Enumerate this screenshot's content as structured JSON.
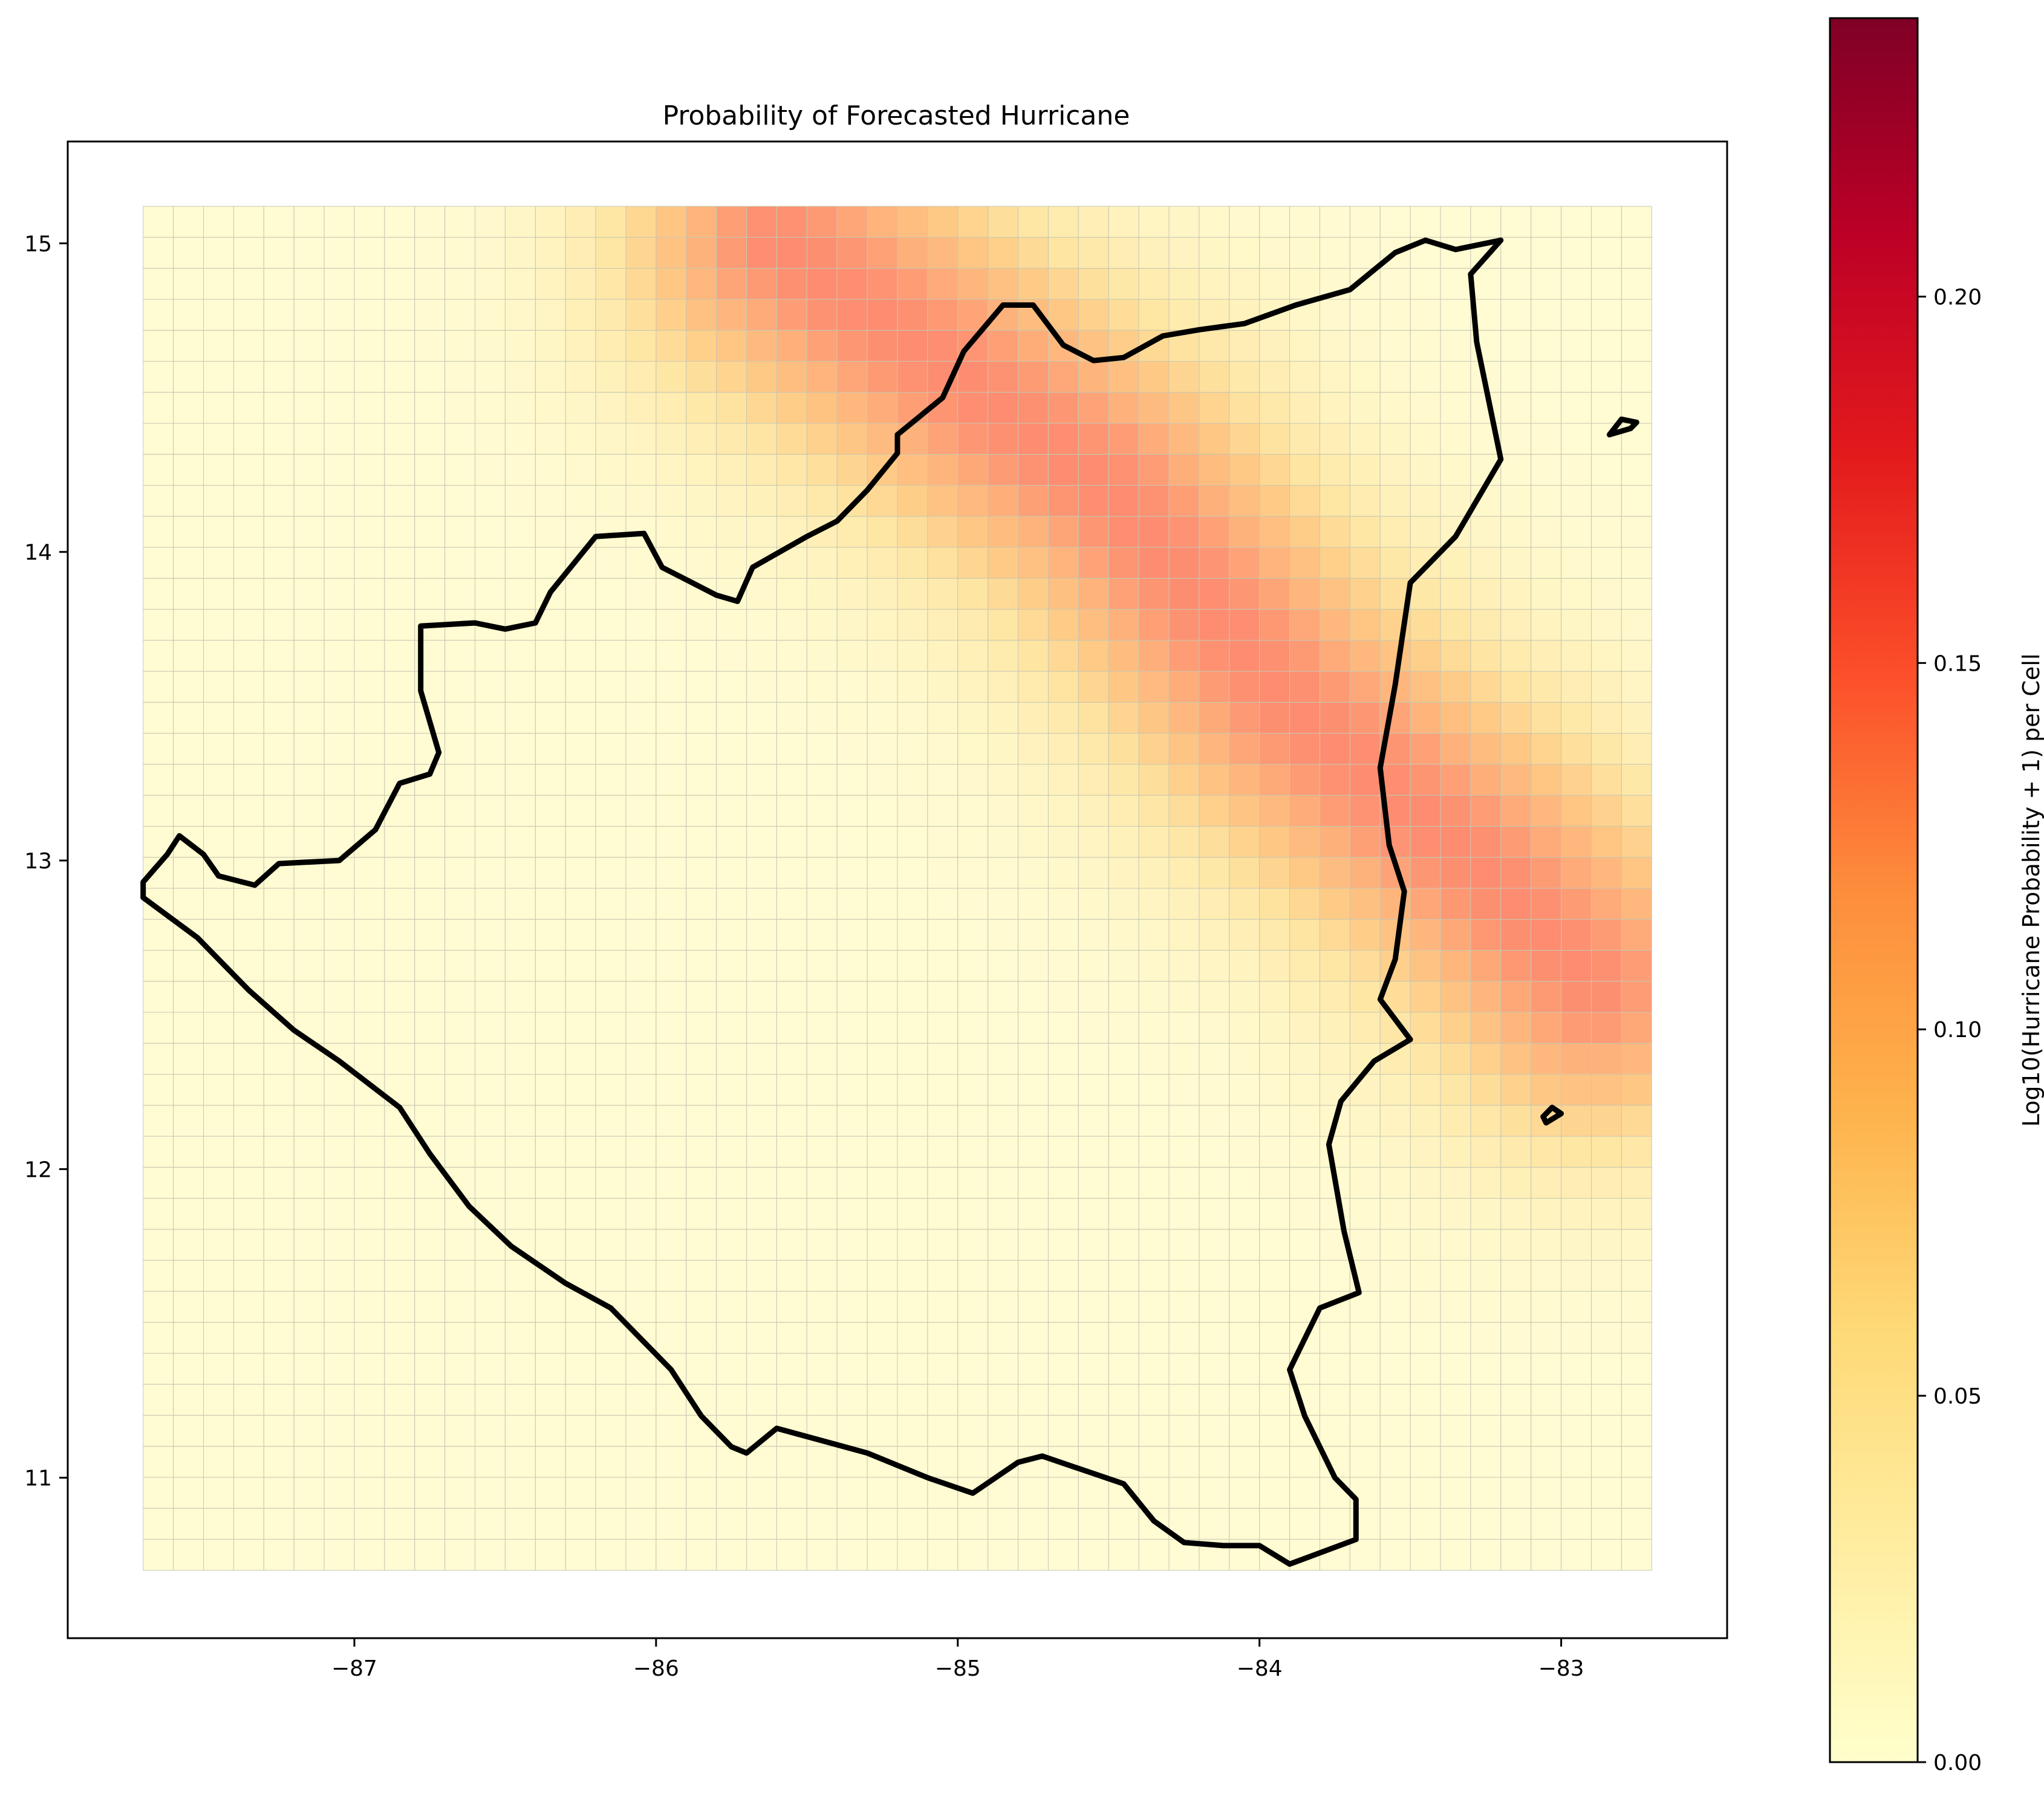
{
  "chart_data": {
    "type": "heatmap",
    "title": "Probability of Forecasted Hurricane",
    "xlabel": "",
    "ylabel": "",
    "xlim": [
      -87.95,
      -82.45
    ],
    "ylim": [
      10.48,
      15.33
    ],
    "grid": false,
    "x_ticks": [
      -87,
      -86,
      -85,
      -84,
      -83
    ],
    "x_tick_labels": [
      "−87",
      "−86",
      "−85",
      "−84",
      "−83"
    ],
    "y_ticks": [
      11,
      12,
      13,
      14,
      15
    ],
    "y_tick_labels": [
      "11",
      "12",
      "13",
      "14",
      "15"
    ],
    "heatmap_grid": {
      "lon_min": -87.7,
      "lon_max": -82.7,
      "lat_min": 10.7,
      "lat_max": 15.12,
      "cols": 50,
      "rows": 44
    },
    "field_model": {
      "description": "cell value approximated along a NW-SE oriented band",
      "band_center_points": [
        [
          -85.6,
          15.0
        ],
        [
          -84.5,
          14.2
        ],
        [
          -83.9,
          13.5
        ],
        [
          -83.3,
          13.0
        ],
        [
          -82.9,
          12.6
        ]
      ],
      "peak_value": 0.145,
      "band_width_deg": 0.38,
      "background_value": 0.01
    },
    "colorbar": {
      "label": "Log10(Hurricane Probability + 1) per Cell",
      "range": [
        0.0,
        0.238
      ],
      "ticks": [
        0.0,
        0.05,
        0.1,
        0.15,
        0.2
      ],
      "tick_labels": [
        "0.00",
        "0.05",
        "0.10",
        "0.15",
        "0.20"
      ],
      "colormap": "YlOrRd",
      "colors": [
        "#ffffcc",
        "#ffeda0",
        "#fed976",
        "#feb24c",
        "#fd8d3c",
        "#fc4e2a",
        "#e31a1c",
        "#bd0026",
        "#800026"
      ]
    },
    "outline": {
      "description": "Nicaragua country boundary",
      "color": "#000000",
      "main_polygon": [
        [
          -87.7,
          12.93
        ],
        [
          -87.62,
          13.02
        ],
        [
          -87.58,
          13.08
        ],
        [
          -87.5,
          13.02
        ],
        [
          -87.45,
          12.95
        ],
        [
          -87.33,
          12.92
        ],
        [
          -87.25,
          12.99
        ],
        [
          -87.05,
          13.0
        ],
        [
          -86.93,
          13.1
        ],
        [
          -86.85,
          13.25
        ],
        [
          -86.75,
          13.28
        ],
        [
          -86.72,
          13.35
        ],
        [
          -86.78,
          13.55
        ],
        [
          -86.78,
          13.76
        ],
        [
          -86.6,
          13.77
        ],
        [
          -86.5,
          13.75
        ],
        [
          -86.4,
          13.77
        ],
        [
          -86.35,
          13.87
        ],
        [
          -86.2,
          14.05
        ],
        [
          -86.04,
          14.06
        ],
        [
          -85.98,
          13.95
        ],
        [
          -85.8,
          13.86
        ],
        [
          -85.73,
          13.84
        ],
        [
          -85.68,
          13.95
        ],
        [
          -85.5,
          14.05
        ],
        [
          -85.4,
          14.1
        ],
        [
          -85.3,
          14.2
        ],
        [
          -85.2,
          14.32
        ],
        [
          -85.2,
          14.38
        ],
        [
          -85.05,
          14.5
        ],
        [
          -84.98,
          14.65
        ],
        [
          -84.85,
          14.8
        ],
        [
          -84.75,
          14.8
        ],
        [
          -84.65,
          14.67
        ],
        [
          -84.55,
          14.62
        ],
        [
          -84.45,
          14.63
        ],
        [
          -84.32,
          14.7
        ],
        [
          -84.2,
          14.72
        ],
        [
          -84.05,
          14.74
        ],
        [
          -83.88,
          14.8
        ],
        [
          -83.7,
          14.85
        ],
        [
          -83.55,
          14.97
        ],
        [
          -83.45,
          15.01
        ],
        [
          -83.35,
          14.98
        ],
        [
          -83.2,
          15.01
        ],
        [
          -83.3,
          14.9
        ],
        [
          -83.28,
          14.68
        ],
        [
          -83.2,
          14.3
        ],
        [
          -83.35,
          14.05
        ],
        [
          -83.5,
          13.9
        ],
        [
          -83.55,
          13.57
        ],
        [
          -83.6,
          13.3
        ],
        [
          -83.57,
          13.05
        ],
        [
          -83.52,
          12.9
        ],
        [
          -83.55,
          12.68
        ],
        [
          -83.6,
          12.55
        ],
        [
          -83.5,
          12.42
        ],
        [
          -83.62,
          12.35
        ],
        [
          -83.73,
          12.22
        ],
        [
          -83.77,
          12.08
        ],
        [
          -83.72,
          11.8
        ],
        [
          -83.67,
          11.6
        ],
        [
          -83.8,
          11.55
        ],
        [
          -83.85,
          11.45
        ],
        [
          -83.9,
          11.35
        ],
        [
          -83.85,
          11.2
        ],
        [
          -83.75,
          11.0
        ],
        [
          -83.68,
          10.93
        ],
        [
          -83.68,
          10.8
        ],
        [
          -83.9,
          10.72
        ],
        [
          -84.0,
          10.78
        ],
        [
          -84.12,
          10.78
        ],
        [
          -84.25,
          10.79
        ],
        [
          -84.35,
          10.86
        ],
        [
          -84.45,
          10.98
        ],
        [
          -84.6,
          11.03
        ],
        [
          -84.72,
          11.07
        ],
        [
          -84.8,
          11.05
        ],
        [
          -84.95,
          10.95
        ],
        [
          -85.1,
          11.0
        ],
        [
          -85.3,
          11.08
        ],
        [
          -85.6,
          11.16
        ],
        [
          -85.7,
          11.08
        ],
        [
          -85.75,
          11.1
        ],
        [
          -85.85,
          11.2
        ],
        [
          -85.95,
          11.35
        ],
        [
          -86.15,
          11.55
        ],
        [
          -86.3,
          11.63
        ],
        [
          -86.48,
          11.75
        ],
        [
          -86.62,
          11.88
        ],
        [
          -86.75,
          12.05
        ],
        [
          -86.85,
          12.2
        ],
        [
          -87.05,
          12.35
        ],
        [
          -87.2,
          12.45
        ],
        [
          -87.35,
          12.58
        ],
        [
          -87.52,
          12.75
        ],
        [
          -87.7,
          12.88
        ],
        [
          -87.7,
          12.93
        ]
      ],
      "islands": [
        [
          [
            -82.84,
            14.38
          ],
          [
            -82.77,
            14.4
          ],
          [
            -82.75,
            14.42
          ],
          [
            -82.8,
            14.43
          ],
          [
            -82.84,
            14.38
          ]
        ],
        [
          [
            -83.05,
            12.15
          ],
          [
            -83.0,
            12.18
          ],
          [
            -83.03,
            12.2
          ],
          [
            -83.06,
            12.17
          ],
          [
            -83.05,
            12.15
          ]
        ]
      ]
    }
  }
}
